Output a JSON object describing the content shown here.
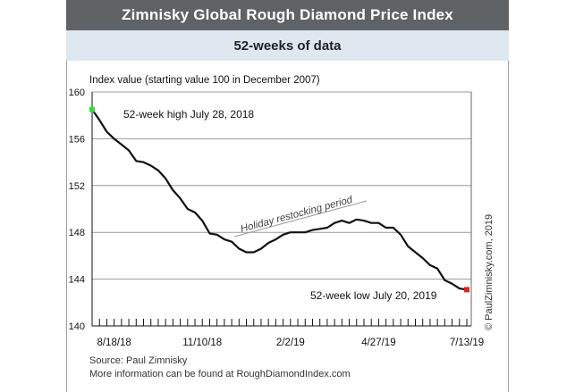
{
  "header": {
    "title": "Zimnisky Global Rough Diamond Price Index",
    "subtitle": "52-weeks of data"
  },
  "footer": {
    "source": "Source: Paul Zimnisky",
    "more_info": "More information can be found at RoughDiamondIndex.com",
    "copyright": "© PaulZimnisky.com, 2019"
  },
  "colors": {
    "line": "#111111",
    "high_marker": "#33dd33",
    "low_marker": "#dd2222",
    "title_bar": "#5f6366",
    "subtitle_bar": "#dfe7f0",
    "grid": "#999999"
  },
  "chart_data": {
    "type": "line",
    "title": "Zimnisky Global Rough Diamond Price Index",
    "subtitle": "52-weeks of data",
    "ylabel": "Index value (starting value 100 in December 2007)",
    "ylim": [
      140,
      160
    ],
    "yticks": [
      "160",
      "156",
      "152",
      "148",
      "144",
      "140"
    ],
    "ytick_values": [
      160,
      156,
      152,
      148,
      144,
      140
    ],
    "xticks": [
      "8/18/18",
      "11/10/18",
      "2/2/19",
      "4/27/19",
      "7/13/19"
    ],
    "xtick_week_index": [
      3,
      15,
      27,
      39,
      51
    ],
    "grid": "horizontal",
    "values": [
      158.5,
      157.6,
      156.6,
      156.0,
      155.5,
      155.0,
      154.1,
      154.0,
      153.7,
      153.3,
      152.6,
      151.6,
      150.9,
      150.0,
      149.7,
      149.0,
      147.9,
      147.8,
      147.4,
      147.2,
      146.6,
      146.3,
      146.3,
      146.6,
      147.1,
      147.4,
      147.8,
      148.0,
      148.0,
      148.0,
      148.2,
      148.3,
      148.4,
      148.8,
      149.0,
      148.8,
      149.1,
      149.0,
      148.8,
      148.8,
      148.4,
      148.4,
      147.8,
      146.8,
      146.3,
      145.8,
      145.2,
      144.9,
      143.9,
      143.6,
      143.2,
      143.1
    ],
    "annotations": {
      "high": "52-week high July 28, 2018",
      "low": "52-week low July 20, 2019",
      "holiday": "Holiday restocking period"
    }
  }
}
